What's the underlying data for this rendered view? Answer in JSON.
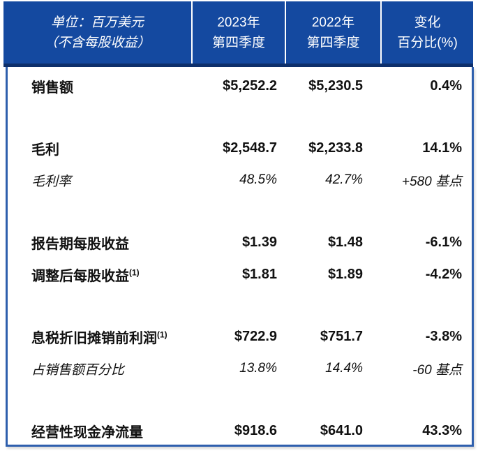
{
  "header": {
    "unit": {
      "line1": "单位：百万美元",
      "line2": "（不含每股收益）"
    },
    "columns": [
      {
        "line1": "2023年",
        "line2": "第四季度"
      },
      {
        "line1": "2022年",
        "line2": "第四季度"
      },
      {
        "line1": "变化",
        "line2": "百分比(%)"
      }
    ]
  },
  "table": {
    "rows": [
      {
        "label": "销售额",
        "sup": "",
        "v2023": "$5,252.2",
        "v2022": "$5,230.5",
        "change": "0.4%",
        "style": "bold",
        "section_start": false
      },
      {
        "label": "毛利",
        "sup": "",
        "v2023": "$2,548.7",
        "v2022": "$2,233.8",
        "change": "14.1%",
        "style": "bold",
        "section_start": true
      },
      {
        "label": "毛利率",
        "sup": "",
        "v2023": "48.5%",
        "v2022": "42.7%",
        "change": "+580 基点",
        "style": "italic",
        "section_start": false
      },
      {
        "label": "报告期每股收益",
        "sup": "",
        "v2023": "$1.39",
        "v2022": "$1.48",
        "change": "-6.1%",
        "style": "bold",
        "section_start": true
      },
      {
        "label": "调整后每股收益",
        "sup": "(1)",
        "v2023": "$1.81",
        "v2022": "$1.89",
        "change": "-4.2%",
        "style": "bold",
        "section_start": false
      },
      {
        "label": "息税折旧摊销前利润",
        "sup": "(1)",
        "v2023": "$722.9",
        "v2022": "$751.7",
        "change": "-3.8%",
        "style": "bold",
        "section_start": true
      },
      {
        "label": "占销售额百分比",
        "sup": "",
        "v2023": "13.8%",
        "v2022": "14.4%",
        "change": "-60 基点",
        "style": "italic",
        "section_start": false
      },
      {
        "label": "经营性现金净流量",
        "sup": "",
        "v2023": "$918.6",
        "v2022": "$641.0",
        "change": "43.3%",
        "style": "bold",
        "section_start": true
      }
    ]
  },
  "colors": {
    "header_bg": "#1449A0",
    "header_border_bottom": "#0D2F6B",
    "header_divider": "#FFFFFF",
    "table_border": "#2E5FAD",
    "text": "#111111",
    "header_text": "#FFFFFF"
  }
}
